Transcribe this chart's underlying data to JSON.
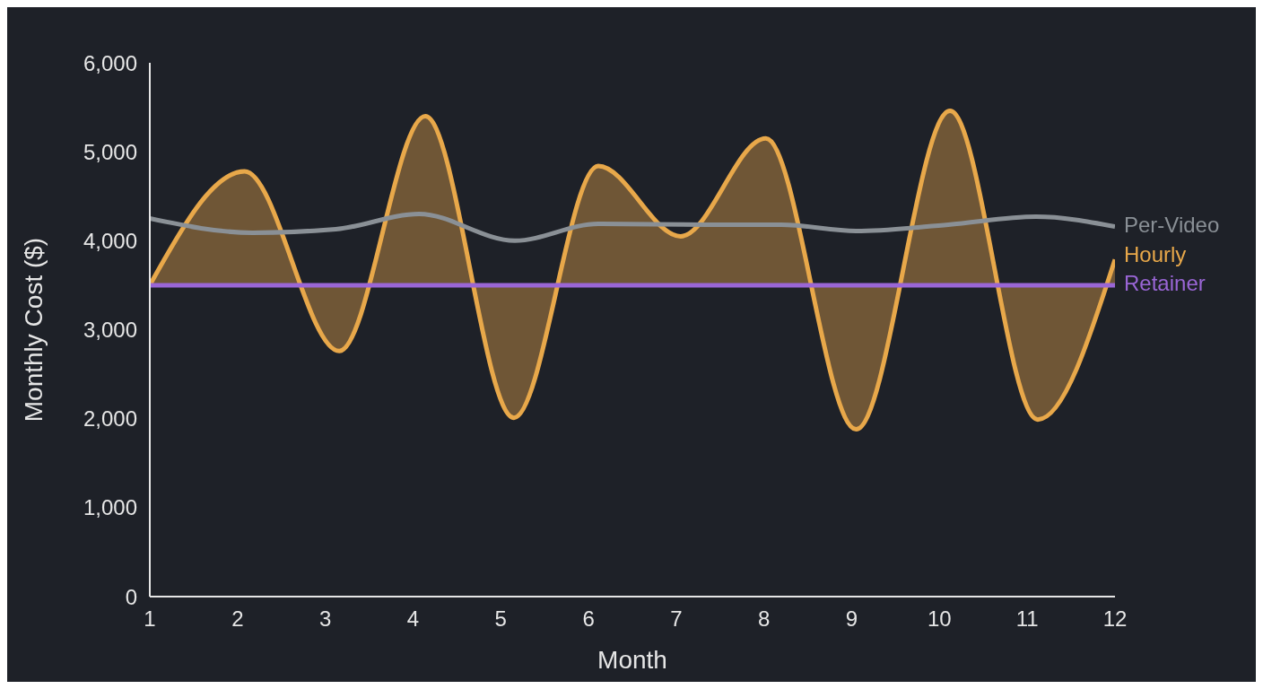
{
  "chart_data": {
    "type": "line",
    "xlabel": "Month",
    "ylabel": "Monthly Cost ($)",
    "xlim": [
      1,
      12
    ],
    "xticks": [
      1,
      2,
      3,
      4,
      5,
      6,
      7,
      8,
      9,
      10,
      11,
      12
    ],
    "ylim": [
      0,
      6000
    ],
    "yticks": [
      {
        "value": 0,
        "label": "0"
      },
      {
        "value": 1000,
        "label": "1,000"
      },
      {
        "value": 2000,
        "label": "2,000"
      },
      {
        "value": 3000,
        "label": "3,000"
      },
      {
        "value": 4000,
        "label": "4,000"
      },
      {
        "value": 5000,
        "label": "5,000"
      },
      {
        "value": 6000,
        "label": "6,000"
      }
    ],
    "grid": false,
    "legend": false,
    "marker": "none",
    "line_style": "solid",
    "series": [
      {
        "name": "Per-Video",
        "color": "#8a9096",
        "x": [
          1,
          2.17,
          3.12,
          4.07,
          5.16,
          6.11,
          7.38,
          8.2,
          9.05,
          10.1,
          11.1,
          12
        ],
        "values": [
          4250,
          4090,
          4130,
          4300,
          4000,
          4190,
          4180,
          4180,
          4110,
          4180,
          4270,
          4160
        ]
      },
      {
        "name": "Hourly",
        "color": "#e8a84a",
        "type": "area",
        "x": [
          1,
          2.08,
          3.16,
          4.14,
          5.15,
          6.11,
          7.05,
          8.02,
          9.05,
          10.12,
          11.12,
          12
        ],
        "values": [
          3500,
          4780,
          2760,
          5400,
          2010,
          4840,
          4050,
          5150,
          1880,
          5460,
          1990,
          3790
        ]
      },
      {
        "name": "Retainer",
        "color": "#9a66d6",
        "x": [
          1,
          12
        ],
        "values": [
          3500,
          3500
        ]
      }
    ]
  }
}
